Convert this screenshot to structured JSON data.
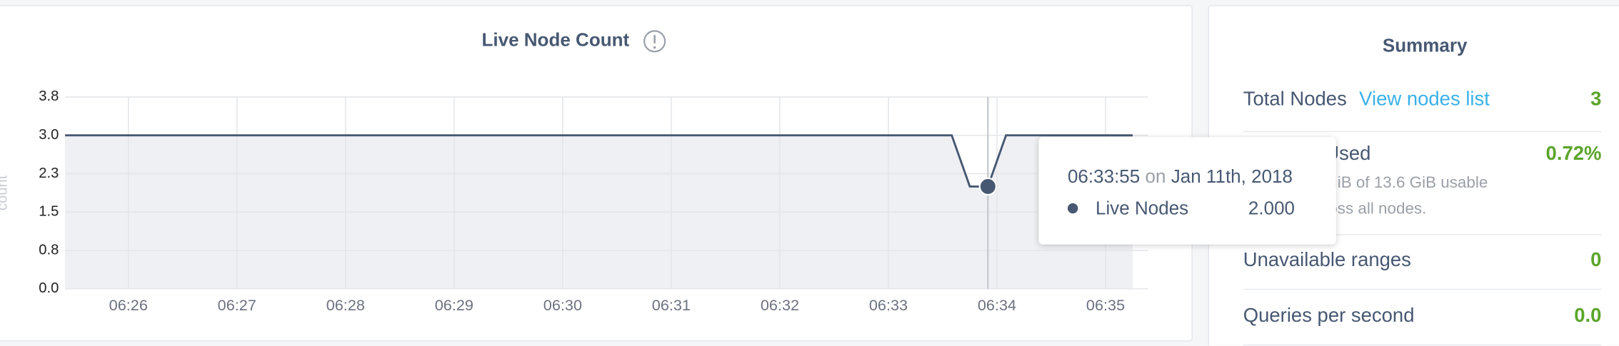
{
  "chart_data": {
    "type": "line",
    "title": "Live Node Count",
    "y_label": "count",
    "x": [
      "06:25:25",
      "06:33:35",
      "06:33:45",
      "06:33:55",
      "06:34:05",
      "06:35:15"
    ],
    "series": [
      {
        "name": "Live Nodes",
        "color": "#475872",
        "values": [
          3,
          3,
          2,
          2,
          3,
          3
        ]
      }
    ],
    "xlim": [
      "06:25:25",
      "06:35:15"
    ],
    "xticks": [
      "06:26",
      "06:27",
      "06:28",
      "06:29",
      "06:30",
      "06:31",
      "06:32",
      "06:33",
      "06:34",
      "06:35"
    ],
    "ylim": [
      0,
      3.75
    ],
    "yticks": [
      {
        "value": 0,
        "label": "0.0"
      },
      {
        "value": 0.75,
        "label": "0.8"
      },
      1.5,
      {
        "value": 2.25,
        "label": "2.3"
      },
      {
        "value": 3,
        "label": "3.0"
      },
      {
        "value": 3.75,
        "label": "3.8"
      }
    ],
    "grid": true,
    "tooltip": {
      "time": "06:33:55",
      "on": "on",
      "date": "Jan 11th, 2018",
      "value_label": "2.000"
    }
  },
  "summary": {
    "title": "Summary",
    "rows": [
      {
        "label": "Total Nodes",
        "link": "View nodes list",
        "value": "3"
      },
      {
        "label": "Capacity Used",
        "value": "0.72%",
        "description": "Using 99.4 MiB of 13.6 GiB usable capacity across all nodes."
      },
      {
        "label": "Unavailable ranges",
        "value": "0"
      },
      {
        "label": "Queries per second",
        "value": "0.0"
      }
    ]
  }
}
